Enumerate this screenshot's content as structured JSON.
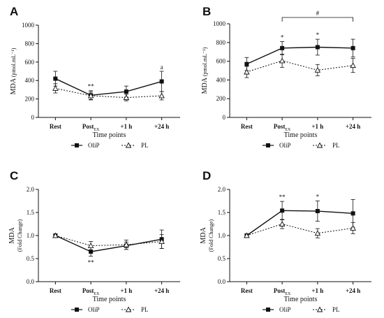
{
  "chart_data": [
    {
      "panel": "A",
      "type": "line",
      "ylabel": "MDA",
      "ylabel_unit": "(pmol.mL⁻¹)",
      "xlabel": "Time points",
      "categories": [
        "Rest",
        "Post",
        "+1 h",
        "+24 h"
      ],
      "category_subscripts": [
        "",
        "EX",
        "",
        ""
      ],
      "ylim": [
        0,
        1000
      ],
      "yticks": [
        "0",
        "200",
        "400",
        "600",
        "800",
        "1000"
      ],
      "series": [
        {
          "name": "OliP",
          "values": [
            420,
            240,
            280,
            390
          ],
          "errors": [
            80,
            50,
            60,
            110
          ]
        },
        {
          "name": "PL",
          "values": [
            315,
            235,
            215,
            235
          ],
          "errors": [
            50,
            40,
            35,
            45
          ]
        }
      ],
      "annotations": [
        {
          "category": 1,
          "text": "**"
        },
        {
          "category": 3,
          "text": "a"
        }
      ],
      "legend": "bottom"
    },
    {
      "panel": "B",
      "type": "line",
      "ylabel": "MDA",
      "ylabel_unit": "(pmol.mL⁻¹)",
      "xlabel": "Time points",
      "categories": [
        "Rest",
        "Post",
        "+1 h",
        "+24 h"
      ],
      "category_subscripts": [
        "",
        "EX",
        "",
        ""
      ],
      "ylim": [
        0,
        1000
      ],
      "yticks": [
        "0",
        "200",
        "400",
        "600",
        "800",
        "1000"
      ],
      "series": [
        {
          "name": "OliP",
          "values": [
            570,
            740,
            750,
            740
          ],
          "errors": [
            70,
            70,
            85,
            95
          ]
        },
        {
          "name": "PL",
          "values": [
            485,
            605,
            505,
            555
          ],
          "errors": [
            60,
            70,
            60,
            75
          ]
        }
      ],
      "annotations": [
        {
          "category": 1,
          "text": "*"
        },
        {
          "category": 2,
          "text": "*"
        },
        {
          "bracket": [
            1,
            3
          ],
          "text": "#"
        }
      ],
      "legend": "bottom"
    },
    {
      "panel": "C",
      "type": "line",
      "ylabel": "MDA",
      "ylabel_unit": "(Fold Change)",
      "xlabel": "Time points",
      "categories": [
        "Rest",
        "Post",
        "+1 h",
        "+24 h"
      ],
      "category_subscripts": [
        "",
        "EX",
        "",
        ""
      ],
      "ylim": [
        0,
        2
      ],
      "yticks": [
        "0.0",
        "0.5",
        "1.0",
        "1.5",
        "2.0"
      ],
      "series": [
        {
          "name": "OliP",
          "values": [
            1.0,
            0.65,
            0.78,
            0.92
          ],
          "errors": [
            0.0,
            0.1,
            0.08,
            0.2
          ]
        },
        {
          "name": "PL",
          "values": [
            1.0,
            0.78,
            0.8,
            0.87
          ],
          "errors": [
            0.0,
            0.09,
            0.1,
            0.15
          ]
        }
      ],
      "annotations": [
        {
          "category": 1,
          "text": "**",
          "position": "below"
        }
      ],
      "legend": "bottom"
    },
    {
      "panel": "D",
      "type": "line",
      "ylabel": "MDA",
      "ylabel_unit": "(Fold Change)",
      "xlabel": "Time points",
      "categories": [
        "Rest",
        "Post",
        "+1 h",
        "+24 h"
      ],
      "category_subscripts": [
        "",
        "EX",
        "",
        ""
      ],
      "ylim": [
        0,
        2
      ],
      "yticks": [
        "0.0",
        "0.5",
        "1.0",
        "1.5",
        "2.0"
      ],
      "series": [
        {
          "name": "OliP",
          "values": [
            1.0,
            1.54,
            1.53,
            1.48
          ],
          "errors": [
            0.0,
            0.2,
            0.22,
            0.3
          ]
        },
        {
          "name": "PL",
          "values": [
            1.0,
            1.25,
            1.05,
            1.16
          ],
          "errors": [
            0.0,
            0.1,
            0.1,
            0.12
          ]
        }
      ],
      "annotations": [
        {
          "category": 1,
          "text": "**"
        },
        {
          "category": 2,
          "text": "*"
        }
      ],
      "legend": "bottom"
    }
  ]
}
